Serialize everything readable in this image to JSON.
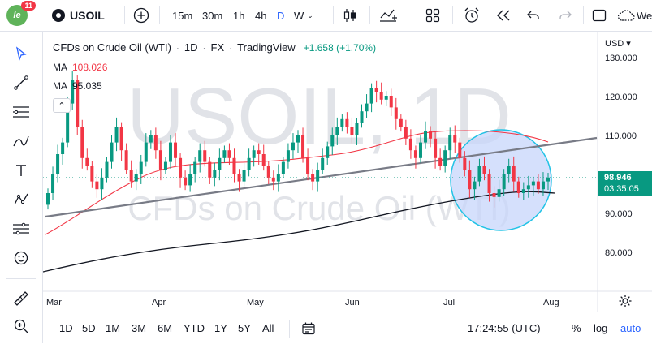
{
  "header": {
    "avatar_badge": "11",
    "symbol": "USOIL",
    "intervals": [
      "15m",
      "30m",
      "1h",
      "4h",
      "D",
      "W"
    ],
    "partial_label": "We"
  },
  "legend": {
    "title": "CFDs on Crude Oil (WTI)",
    "interval": "1D",
    "source": "FX",
    "provider": "TradingView",
    "change": "+1.658 (+1.70%)",
    "ma1_label": "MA",
    "ma1_value": "108.026",
    "ma2_label": "MA",
    "ma2_value": "95.035",
    "collapse_glyph": "⌃"
  },
  "watermark": {
    "symbol": "USOIL, 1D",
    "name": "CFDs on Crude Oil (WTI)"
  },
  "price_axis": {
    "currency": "USD ▾",
    "ticks": [
      "130.000",
      "120.000",
      "110.000",
      "90.000",
      "80.000"
    ],
    "last_price": "98.946",
    "countdown": "03:35:05"
  },
  "time_axis": {
    "labels": [
      "Mar",
      "Apr",
      "May",
      "Jun",
      "Jul",
      "Aug"
    ]
  },
  "bottom": {
    "ranges": [
      "1D",
      "5D",
      "1M",
      "3M",
      "6M",
      "YTD",
      "1Y",
      "5Y",
      "All"
    ],
    "clock": "17:24:55 (UTC)",
    "percent": "%",
    "log": "log",
    "auto": "auto"
  },
  "colors": {
    "up": "#089981",
    "down": "#f23645",
    "ma_short": "#f23645",
    "ma_long": "#131722",
    "accent": "#2962ff",
    "highlight_fill": "#c7d6fb",
    "highlight_stroke": "#22c3e6",
    "trendline": "#787b86"
  },
  "icons": [
    "search-icon",
    "plus-icon",
    "candles-icon",
    "indicators-icon",
    "layout-icon",
    "alert-icon",
    "replay-icon",
    "undo-icon",
    "redo-icon",
    "fullscreen-icon",
    "cloud-icon",
    "cursor-icon",
    "trendline-icon",
    "hlines-icon",
    "brush-icon",
    "text-icon",
    "pattern-icon",
    "measure-sliders-icon",
    "emoji-icon",
    "ruler-icon",
    "zoom-icon",
    "calendar-icon",
    "settings-icon"
  ]
}
